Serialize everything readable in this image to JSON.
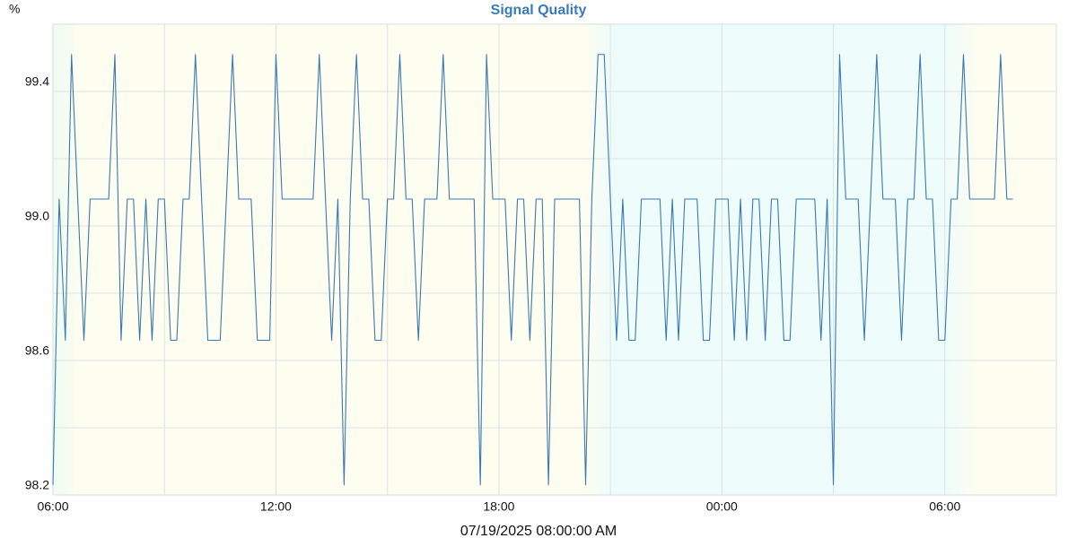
{
  "chart_data": {
    "type": "line",
    "title": "Signal Quality",
    "y_label": "%",
    "x_label": "07/19/2025 08:00:00 AM",
    "color": "#3b78b5",
    "grid": true,
    "xlim": [
      0,
      1620
    ],
    "xticks": [
      {
        "value": 0,
        "label": "06:00"
      },
      {
        "value": 360,
        "label": "12:00"
      },
      {
        "value": 720,
        "label": "18:00"
      },
      {
        "value": 1080,
        "label": "00:00"
      },
      {
        "value": 1440,
        "label": "06:00"
      }
    ],
    "xminor": [
      180,
      540,
      900,
      1260
    ],
    "ylim": [
      98.2,
      99.6
    ],
    "yticks": [
      98.2,
      98.6,
      {
        "value": 99,
        "label": "99.0"
      },
      99.4
    ],
    "yminor": [
      98.4,
      98.8,
      99.2
    ],
    "background": [
      [
        0,
        "#eefcf2"
      ],
      [
        45,
        "#fdfdf0"
      ],
      [
        860,
        "#fdfdf0"
      ],
      [
        900,
        "#eefcfc"
      ],
      [
        1440,
        "#eefcfc"
      ],
      [
        1490,
        "#fdfdf0"
      ],
      [
        1620,
        "#fdfdf0"
      ]
    ],
    "x": [
      0,
      10,
      20,
      30,
      40,
      50,
      60,
      70,
      80,
      90,
      100,
      110,
      120,
      130,
      140,
      150,
      160,
      170,
      180,
      190,
      200,
      210,
      220,
      230,
      240,
      250,
      260,
      270,
      280,
      290,
      300,
      310,
      320,
      330,
      340,
      350,
      360,
      370,
      380,
      390,
      400,
      410,
      420,
      430,
      440,
      450,
      460,
      470,
      480,
      490,
      500,
      510,
      520,
      530,
      540,
      550,
      560,
      570,
      580,
      590,
      600,
      610,
      620,
      630,
      640,
      650,
      660,
      670,
      680,
      690,
      700,
      710,
      720,
      730,
      740,
      750,
      760,
      770,
      780,
      790,
      800,
      810,
      820,
      830,
      840,
      850,
      860,
      870,
      880,
      890,
      900,
      910,
      920,
      930,
      940,
      950,
      960,
      970,
      980,
      990,
      1000,
      1010,
      1020,
      1030,
      1040,
      1050,
      1060,
      1070,
      1080,
      1090,
      1100,
      1110,
      1120,
      1130,
      1140,
      1150,
      1160,
      1170,
      1180,
      1190,
      1200,
      1210,
      1220,
      1230,
      1240,
      1250,
      1260,
      1270,
      1280,
      1290,
      1300,
      1310,
      1320,
      1330,
      1340,
      1350,
      1360,
      1370,
      1380,
      1390,
      1400,
      1410,
      1420,
      1430,
      1440,
      1450,
      1460,
      1470,
      1480,
      1490,
      1500,
      1510,
      1520,
      1530,
      1540,
      1550
    ],
    "series": [
      {
        "values": [
          98.23,
          99.08,
          98.66,
          99.51,
          99.08,
          98.66,
          99.08,
          99.08,
          99.08,
          99.08,
          99.51,
          98.66,
          99.08,
          99.08,
          98.66,
          99.08,
          98.66,
          99.08,
          99.08,
          98.66,
          98.66,
          99.08,
          99.08,
          99.51,
          99.08,
          98.66,
          98.66,
          98.66,
          99.08,
          99.51,
          99.08,
          99.08,
          99.08,
          98.66,
          98.66,
          98.66,
          99.51,
          99.08,
          99.08,
          99.08,
          99.08,
          99.08,
          99.08,
          99.51,
          99.08,
          98.66,
          99.08,
          98.23,
          99.08,
          99.51,
          99.08,
          99.08,
          98.66,
          98.66,
          99.08,
          99.08,
          99.51,
          99.08,
          99.08,
          98.66,
          99.08,
          99.08,
          99.08,
          99.51,
          99.08,
          99.08,
          99.08,
          99.08,
          99.08,
          98.23,
          99.51,
          99.08,
          99.08,
          99.08,
          98.66,
          99.08,
          99.08,
          98.66,
          99.08,
          99.08,
          98.23,
          99.08,
          99.08,
          99.08,
          99.08,
          99.08,
          98.23,
          99.08,
          99.51,
          99.51,
          99.08,
          98.66,
          99.08,
          98.66,
          98.66,
          99.08,
          99.08,
          99.08,
          99.08,
          98.66,
          99.08,
          98.66,
          99.08,
          99.08,
          99.08,
          98.66,
          98.66,
          99.08,
          99.08,
          99.08,
          98.66,
          99.08,
          98.66,
          99.08,
          99.08,
          98.66,
          99.08,
          99.08,
          98.66,
          98.66,
          99.08,
          99.08,
          99.08,
          99.08,
          98.66,
          99.08,
          98.23,
          99.51,
          99.08,
          99.08,
          99.08,
          98.66,
          99.08,
          99.51,
          99.08,
          99.08,
          99.08,
          98.66,
          99.08,
          99.08,
          99.51,
          99.08,
          99.08,
          98.66,
          98.66,
          99.08,
          99.08,
          99.51,
          99.08,
          99.08,
          99.08,
          99.08,
          99.08,
          99.51,
          99.08,
          99.08
        ]
      }
    ]
  }
}
